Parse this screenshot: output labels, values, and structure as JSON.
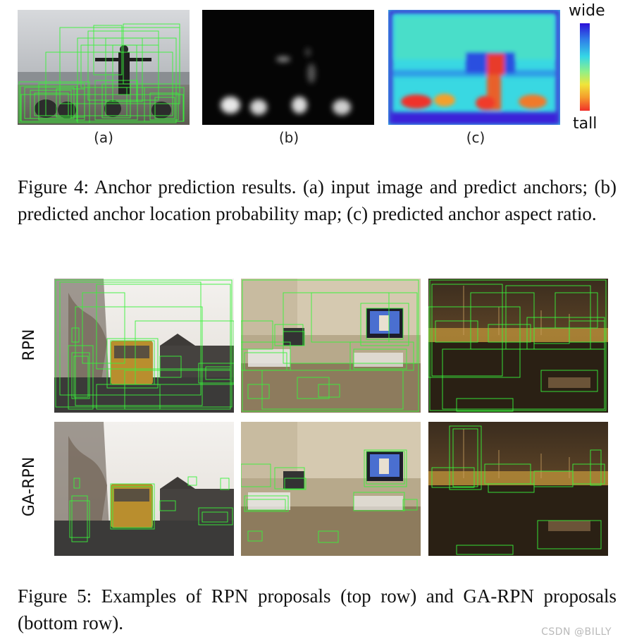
{
  "figure4": {
    "panel_labels": [
      "(a)",
      "(b)",
      "(c)"
    ],
    "colorbar_top": "wide",
    "colorbar_bottom": "tall",
    "caption": "Figure 4:  Anchor prediction results. (a) input image and predict anchors; (b) predicted anchor location probability map; (c) predicted anchor aspect ratio.",
    "colorbar_colors": [
      "#2b10d8",
      "#2f7be8",
      "#35d7e6",
      "#8ef08a",
      "#f0e53a",
      "#f59a2c",
      "#f0302a"
    ]
  },
  "figure5": {
    "row_labels": [
      "RPN",
      "GA-RPN"
    ],
    "caption": "Figure 5:  Examples of RPN proposals (top row) and GA-RPN proposals (bottom row).",
    "box_color": "#36e83a"
  },
  "watermark": "CSDN @BILLY"
}
